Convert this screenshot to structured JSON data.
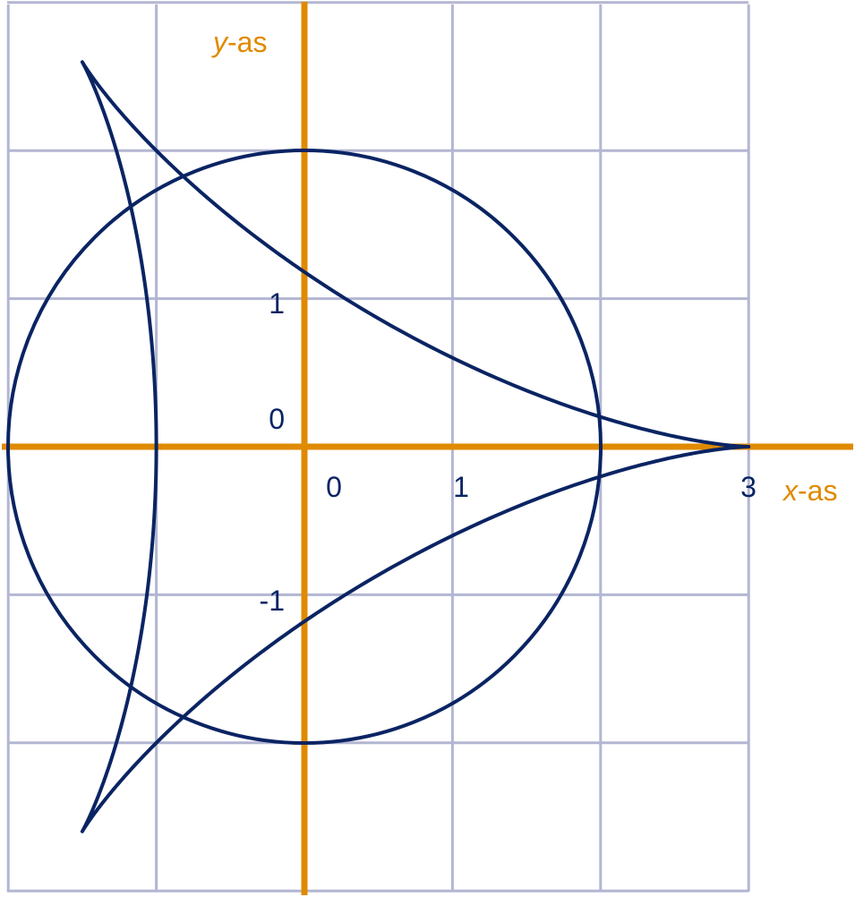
{
  "axes": {
    "x": {
      "var": "x",
      "suffix": "-as"
    },
    "y": {
      "var": "y",
      "suffix": "-as"
    }
  },
  "tick_labels": {
    "y_one": "1",
    "y_zero": "0",
    "y_minus_one": "-1",
    "x_zero": "0",
    "x_one": "1",
    "x_three": "3"
  }
}
